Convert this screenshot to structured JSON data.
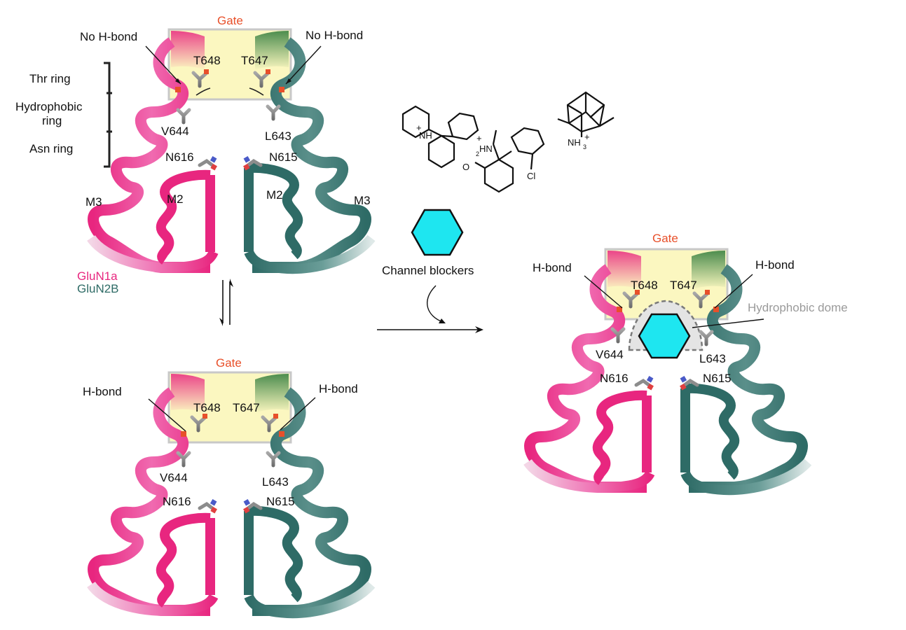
{
  "colors": {
    "glun1a": "#e8267f",
    "glun2b": "#2e6b66",
    "gate_text": "#e8502a",
    "gate_box": "#fbf7c0",
    "blocker": "#1ee6f0",
    "residue": "#8c8c8c",
    "dome_text": "#9a9a9a"
  },
  "icons": [
    "helix-ribbon",
    "residue-stick",
    "hexagon",
    "chemical-structure",
    "equilibrium-arrows",
    "reaction-arrow"
  ],
  "panel_top": {
    "gate": "Gate",
    "no_hbond_left": "No H-bond",
    "no_hbond_right": "No H-bond",
    "t648": "T648",
    "t647": "T647",
    "v644": "V644",
    "l643": "L643",
    "n616": "N616",
    "n615": "N615",
    "m3_left": "M3",
    "m2_left": "M2",
    "m2_right": "M2",
    "m3_right": "M3",
    "rings": {
      "thr": "Thr ring",
      "hydrophobic_1": "Hydrophobic",
      "hydrophobic_2": "ring",
      "asn": "Asn ring"
    },
    "legend": {
      "glun1a": "GluN1a",
      "glun2b": "GluN2B"
    }
  },
  "panel_bottom": {
    "gate": "Gate",
    "hbond_left": "H-bond",
    "hbond_right": "H-bond",
    "t648": "T648",
    "t647": "T647",
    "v644": "V644",
    "l643": "L643",
    "n616": "N616",
    "n615": "N615"
  },
  "panel_right": {
    "gate": "Gate",
    "hbond_left": "H-bond",
    "hbond_right": "H-bond",
    "t648": "T648",
    "t647": "T647",
    "v644": "V644",
    "l643": "L643",
    "n616": "N616",
    "n615": "N615",
    "dome": "Hydrophobic dome"
  },
  "blockers": {
    "label": "Channel blockers",
    "pcp_nh": "NH",
    "pcp_plus": "+",
    "ket_plus": "+",
    "ket_sub": "2",
    "ket_hn": "HN",
    "ket_cl": "Cl",
    "ket_o": "O",
    "mem_nh": "NH",
    "mem_sub": "3",
    "mem_plus": "+"
  }
}
